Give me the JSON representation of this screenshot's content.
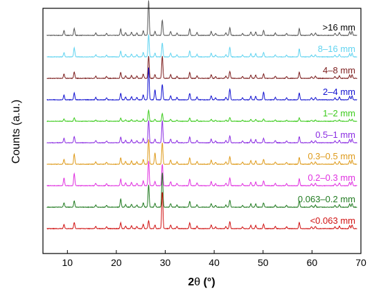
{
  "chart_data": {
    "type": "line",
    "xlabel_prefix": "2",
    "xlabel_theta": "θ",
    "xlabel_suffix": " (°)",
    "ylabel": "Counts (a.u.)",
    "xlim": [
      5,
      70
    ],
    "xticks": [
      10,
      20,
      30,
      40,
      50,
      60,
      70
    ],
    "y_tick_labels": false,
    "grid": false,
    "legend": "inline labels at right of each trace",
    "peaks": [
      {
        "x": 9.3,
        "h": 0.12
      },
      {
        "x": 11.4,
        "h": 0.17
      },
      {
        "x": 15.8,
        "h": 0.06
      },
      {
        "x": 18.0,
        "h": 0.05
      },
      {
        "x": 20.9,
        "h": 0.16
      },
      {
        "x": 21.9,
        "h": 0.07
      },
      {
        "x": 23.1,
        "h": 0.08
      },
      {
        "x": 24.2,
        "h": 0.06
      },
      {
        "x": 25.5,
        "h": 0.12
      },
      {
        "x": 26.6,
        "h": 0.62
      },
      {
        "x": 27.9,
        "h": 0.1
      },
      {
        "x": 29.4,
        "h": 0.38
      },
      {
        "x": 31.1,
        "h": 0.1
      },
      {
        "x": 32.4,
        "h": 0.06
      },
      {
        "x": 35.0,
        "h": 0.16
      },
      {
        "x": 36.5,
        "h": 0.07
      },
      {
        "x": 39.4,
        "h": 0.1
      },
      {
        "x": 40.3,
        "h": 0.05
      },
      {
        "x": 42.4,
        "h": 0.06
      },
      {
        "x": 43.2,
        "h": 0.19
      },
      {
        "x": 45.8,
        "h": 0.05
      },
      {
        "x": 47.5,
        "h": 0.09
      },
      {
        "x": 48.5,
        "h": 0.09
      },
      {
        "x": 50.1,
        "h": 0.12
      },
      {
        "x": 52.5,
        "h": 0.06
      },
      {
        "x": 54.8,
        "h": 0.05
      },
      {
        "x": 57.4,
        "h": 0.17
      },
      {
        "x": 59.9,
        "h": 0.05
      },
      {
        "x": 60.7,
        "h": 0.06
      },
      {
        "x": 64.7,
        "h": 0.05
      },
      {
        "x": 65.6,
        "h": 0.07
      },
      {
        "x": 67.7,
        "h": 0.09
      },
      {
        "x": 68.2,
        "h": 0.1
      }
    ],
    "series": [
      {
        "name": ">16 mm",
        "color": "#555555",
        "scale": 1.0,
        "boost": {
          "26.6": 1.4
        }
      },
      {
        "name": "8–16 mm",
        "color": "#5FD3F0",
        "scale": 0.9,
        "boost": {
          "11.4": 1.5,
          "35.0": 1.3,
          "43.2": 1.4,
          "57.4": 1.3
        }
      },
      {
        "name": "4–8 mm",
        "color": "#7B1C1C",
        "scale": 0.9,
        "boost": {
          "29.4": 1.6
        }
      },
      {
        "name": "2–4 mm",
        "color": "#1010D0",
        "scale": 1.0,
        "boost": {
          "26.6": 1.3,
          "27.9": 2.5,
          "50.1": 1.6,
          "43.2": 1.4
        }
      },
      {
        "name": "1–2 mm",
        "color": "#3CCB1C",
        "scale": 0.5,
        "boost": {
          "26.6": 0.9
        }
      },
      {
        "name": "0.5–1 mm",
        "color": "#8A2BE2",
        "scale": 0.9,
        "boost": {
          "29.4": 1.6
        }
      },
      {
        "name": "0.3–0.5 mm",
        "color": "#DE9A1A",
        "scale": 1.0,
        "boost": {
          "11.4": 1.5,
          "27.9": 2.8,
          "29.4": 1.4
        }
      },
      {
        "name": "0.2–0.3 mm",
        "color": "#E030E0",
        "scale": 1.0,
        "boost": {
          "11.4": 1.8,
          "9.3": 1.6,
          "29.4": 1.4
        }
      },
      {
        "name": "0.063–0.2 mm",
        "color": "#207A20",
        "scale": 0.9,
        "boost": {
          "20.9": 1.4,
          "29.4": 2.5
        }
      },
      {
        "name": "<0.063 mm",
        "color": "#D01010",
        "scale": 0.9,
        "boost": {
          "29.4": 2.8,
          "26.6": 0.35
        }
      }
    ]
  }
}
